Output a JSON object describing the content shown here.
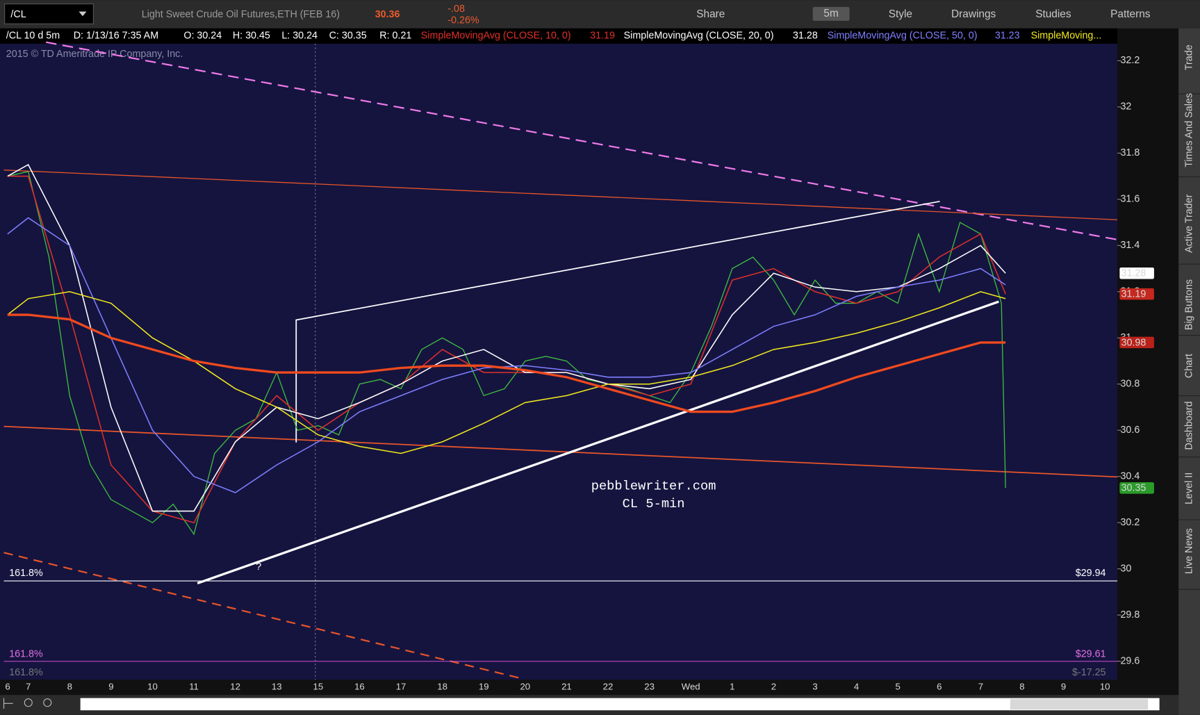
{
  "toolbar": {
    "symbol": "/CL",
    "description": "Light Sweet Crude Oil Futures,ETH (FEB 16)",
    "last": "30.36",
    "change": "-.08",
    "change_pct": "-0.26%",
    "buttons": [
      "Share",
      "5m",
      "Style",
      "Drawings",
      "Studies",
      "Patterns"
    ]
  },
  "header": {
    "chart_id": "/CL 10 d 5m",
    "date": "D: 1/13/16 7:35 AM",
    "open": "O: 30.24",
    "high": "H: 30.45",
    "low": "L: 30.24",
    "close": "C: 30.35",
    "range": "R: 0.21",
    "copyright": "2015 © TD Ameritrade IP Company, Inc."
  },
  "side_tabs": [
    "Trade",
    "Times And Sales",
    "Active Trader",
    "Big Buttons",
    "Chart",
    "Dashboard",
    "Level II",
    "Live News"
  ],
  "chart_data": {
    "type": "line",
    "annotations": [
      "pebblewriter.com",
      "CL 5-min",
      "?"
    ],
    "fib_labels": [
      {
        "ratio": "161.8%",
        "price": "$29.94"
      },
      {
        "ratio": "161.8%",
        "price": "$29.61"
      },
      {
        "ratio": "161.8%",
        "price": "$-17.25"
      }
    ],
    "categories": [
      "6",
      "7",
      "8",
      "9",
      "10",
      "11",
      "12",
      "13",
      "15",
      "16",
      "17",
      "18",
      "19",
      "20",
      "21",
      "22",
      "23",
      "Wed",
      "1",
      "2",
      "3",
      "4",
      "5",
      "6",
      "7",
      "8",
      "9",
      "10"
    ],
    "xlim": [
      0.41,
      27.3
    ],
    "ylim": [
      29.52,
      32.34
    ],
    "yticks": [
      29.6,
      29.8,
      30,
      30.2,
      30.4,
      30.6,
      30.8,
      31,
      31.2,
      31.4,
      31.6,
      31.8,
      32,
      32.2
    ],
    "price": {
      "color": "#3fbf3f",
      "x": [
        0.5,
        1,
        1.5,
        2,
        2.5,
        3,
        3.5,
        4,
        4.5,
        5,
        5.5,
        6,
        6.5,
        7,
        7.5,
        8,
        8.5,
        9,
        9.5,
        10,
        10.5,
        11,
        11.5,
        12,
        12.5,
        13,
        13.5,
        14,
        14.5,
        15,
        15.5,
        16,
        16.5,
        17,
        17.5,
        18,
        18.5,
        19,
        19.5,
        20,
        20.5,
        21,
        21.5,
        22,
        22.5,
        23,
        23.5,
        24,
        24.5,
        24.6
      ],
      "values": [
        31.7,
        31.72,
        31.35,
        30.75,
        30.45,
        30.3,
        30.25,
        30.2,
        30.28,
        30.15,
        30.5,
        30.6,
        30.65,
        30.85,
        30.6,
        30.62,
        30.58,
        30.8,
        30.82,
        30.78,
        30.95,
        31.0,
        30.95,
        30.75,
        30.78,
        30.9,
        30.92,
        30.9,
        30.82,
        30.8,
        30.78,
        30.75,
        30.72,
        30.85,
        31.05,
        31.3,
        31.35,
        31.25,
        31.1,
        31.25,
        31.15,
        31.15,
        31.2,
        31.15,
        31.45,
        31.2,
        31.5,
        31.45,
        31.15,
        30.35
      ]
    },
    "series": [
      {
        "name": "SimpleMovingAvg (CLOSE, 10, 0)",
        "color": "#e0302a",
        "x": [
          0.5,
          1,
          2,
          3,
          4,
          5,
          6,
          7,
          8,
          9,
          10,
          11,
          12,
          13,
          14,
          15,
          16,
          17,
          18,
          19,
          20,
          21,
          22,
          23,
          24,
          24.6
        ],
        "values": [
          31.7,
          31.7,
          31.1,
          30.45,
          30.25,
          30.2,
          30.55,
          30.75,
          30.6,
          30.72,
          30.8,
          30.95,
          30.85,
          30.85,
          30.85,
          30.8,
          30.75,
          30.8,
          31.25,
          31.3,
          31.2,
          31.15,
          31.2,
          31.35,
          31.45,
          31.19
        ]
      },
      {
        "name": "SimpleMovingAvg (CLOSE, 20, 0)",
        "color": "#ffffff",
        "x": [
          0.5,
          1,
          2,
          3,
          4,
          5,
          6,
          7,
          8,
          9,
          10,
          11,
          12,
          13,
          14,
          15,
          16,
          17,
          18,
          19,
          20,
          21,
          22,
          23,
          24,
          24.6
        ],
        "values": [
          31.7,
          31.75,
          31.4,
          30.7,
          30.25,
          30.25,
          30.55,
          30.7,
          30.65,
          30.72,
          30.8,
          30.9,
          30.95,
          30.85,
          30.85,
          30.8,
          30.78,
          30.82,
          31.1,
          31.28,
          31.22,
          31.2,
          31.22,
          31.3,
          31.4,
          31.28
        ]
      },
      {
        "name": "SimpleMovingAvg (CLOSE, 50, 0)",
        "color": "#7f7fff",
        "x": [
          0.5,
          1,
          2,
          3,
          4,
          5,
          6,
          7,
          8,
          9,
          10,
          11,
          12,
          13,
          14,
          15,
          16,
          17,
          18,
          19,
          20,
          21,
          22,
          23,
          24,
          24.6
        ],
        "values": [
          31.45,
          31.52,
          31.4,
          31.0,
          30.6,
          30.4,
          30.33,
          30.45,
          30.55,
          30.68,
          30.75,
          30.82,
          30.87,
          30.88,
          30.86,
          30.83,
          30.83,
          30.85,
          30.95,
          31.05,
          31.1,
          31.18,
          31.22,
          31.25,
          31.3,
          31.23
        ]
      },
      {
        "name": "SimpleMoving...",
        "color": "#f2ea1c",
        "x": [
          0.5,
          1,
          2,
          3,
          4,
          5,
          6,
          7,
          8,
          9,
          10,
          11,
          12,
          13,
          14,
          15,
          16,
          17,
          18,
          19,
          20,
          21,
          22,
          23,
          24,
          24.6
        ],
        "values": [
          31.1,
          31.17,
          31.2,
          31.15,
          31.0,
          30.9,
          30.78,
          30.7,
          30.58,
          30.53,
          30.5,
          30.55,
          30.63,
          30.72,
          30.75,
          30.8,
          30.8,
          30.83,
          30.88,
          30.95,
          30.98,
          31.02,
          31.07,
          31.13,
          31.2,
          31.17
        ]
      },
      {
        "color": "#f04a1e",
        "x": [
          0.5,
          1,
          2,
          3,
          4,
          5,
          6,
          7,
          8,
          9,
          10,
          11,
          12,
          13,
          14,
          15,
          16,
          17,
          18,
          19,
          20,
          21,
          22,
          23,
          24,
          24.6
        ],
        "values": [
          31.1,
          31.1,
          31.08,
          31.0,
          30.95,
          30.9,
          30.87,
          30.85,
          30.85,
          30.85,
          30.87,
          30.88,
          30.88,
          30.86,
          30.83,
          30.78,
          30.73,
          30.68,
          30.68,
          30.72,
          30.77,
          30.83,
          30.88,
          30.93,
          30.98,
          30.98
        ]
      }
    ]
  }
}
